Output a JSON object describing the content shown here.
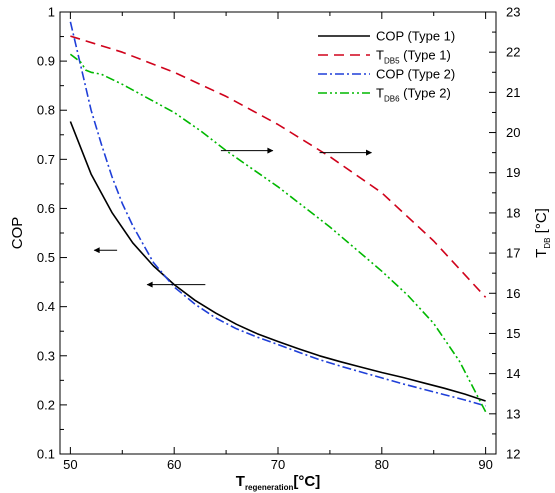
{
  "chart_data": {
    "type": "line",
    "xlabel": {
      "main": "T",
      "sub": "regeneration",
      "unit": "[°C]"
    },
    "ylabel_left": "COP",
    "ylabel_right": {
      "main": "T",
      "sub": "DB",
      "unit": " [°C]"
    },
    "xlim": [
      49,
      91
    ],
    "ylim_left": [
      0.1,
      1.0
    ],
    "ylim_right": [
      12,
      23
    ],
    "x_ticks": [
      50,
      60,
      70,
      80,
      90
    ],
    "y_left_ticks": [
      0.1,
      0.2,
      0.3,
      0.4,
      0.5,
      0.6,
      0.7,
      0.8,
      0.9,
      1
    ],
    "y_right_ticks": [
      12,
      13,
      14,
      15,
      16,
      17,
      18,
      19,
      20,
      21,
      22,
      23
    ],
    "x_tick_labels": [
      "50",
      "60",
      "70",
      "80",
      "90"
    ],
    "y_left_tick_labels": [
      "0.1",
      "0.2",
      "0.3",
      "0.4",
      "0.5",
      "0.6",
      "0.7",
      "0.8",
      "0.9",
      "1"
    ],
    "y_right_tick_labels": [
      "12",
      "13",
      "14",
      "15",
      "16",
      "17",
      "18",
      "19",
      "20",
      "21",
      "22",
      "23"
    ],
    "grid": false,
    "legend_position": "top-right",
    "series": [
      {
        "name": "COP (Type 1)",
        "legend_main": "COP (Type 1)",
        "legend_sub": "",
        "legend_tail": "",
        "axis": "left",
        "color": "#000000",
        "dash": "",
        "x": [
          50,
          52,
          54,
          56,
          58,
          60,
          62,
          64,
          66,
          68,
          70,
          72,
          74,
          76,
          78,
          80,
          82,
          84,
          86,
          88,
          90
        ],
        "y": [
          0.777,
          0.67,
          0.592,
          0.53,
          0.483,
          0.445,
          0.413,
          0.387,
          0.364,
          0.345,
          0.329,
          0.314,
          0.3,
          0.288,
          0.277,
          0.266,
          0.256,
          0.245,
          0.234,
          0.222,
          0.208
        ]
      },
      {
        "name": "TDB5 (Type 1)",
        "legend_main": "T",
        "legend_sub": "DB5",
        "legend_tail": " (Type 1)",
        "axis": "right",
        "color": "#d0021b",
        "dash": "10,6",
        "x": [
          50,
          55,
          60,
          65,
          70,
          75,
          80,
          85,
          90
        ],
        "y": [
          22.4,
          22.0,
          21.5,
          20.9,
          20.2,
          19.4,
          18.5,
          17.3,
          15.9
        ]
      },
      {
        "name": "COP (Type 2)",
        "legend_main": "COP (Type 2)",
        "legend_sub": "",
        "legend_tail": "",
        "axis": "left",
        "color": "#1f3fd8",
        "dash": "9,3,2,3",
        "x": [
          50,
          51,
          52,
          53,
          54,
          55,
          56,
          58,
          60,
          62,
          64,
          66,
          68,
          70,
          72,
          74,
          76,
          78,
          80,
          82,
          84,
          86,
          88,
          90
        ],
        "y": [
          0.98,
          0.89,
          0.8,
          0.73,
          0.665,
          0.61,
          0.565,
          0.49,
          0.44,
          0.405,
          0.377,
          0.355,
          0.338,
          0.323,
          0.307,
          0.292,
          0.279,
          0.267,
          0.255,
          0.243,
          0.232,
          0.221,
          0.21,
          0.198
        ]
      },
      {
        "name": "TDB6 (Type 2)",
        "legend_main": "T",
        "legend_sub": "DB6",
        "legend_tail": " (Type 2)",
        "axis": "right",
        "color": "#00b800",
        "dash": "9,3,2,3,2,3",
        "x": [
          50,
          51,
          51.5,
          52,
          53,
          55,
          57.5,
          60,
          62.5,
          65,
          67.5,
          70,
          72.5,
          75,
          77.5,
          80,
          82.5,
          85,
          87.5,
          90
        ],
        "y": [
          21.95,
          21.75,
          21.55,
          21.5,
          21.45,
          21.2,
          20.85,
          20.5,
          20.05,
          19.55,
          19.1,
          18.65,
          18.15,
          17.65,
          17.1,
          16.55,
          15.95,
          15.25,
          14.3,
          13.05
        ]
      }
    ],
    "annotations": [
      {
        "type": "arrow",
        "axis": "left",
        "x1": 54.5,
        "y1": 0.515,
        "x2": 52.3,
        "y2": 0.515
      },
      {
        "type": "arrow",
        "axis": "left",
        "x1": 63,
        "y1": 0.445,
        "x2": 57.4,
        "y2": 0.445
      },
      {
        "type": "arrow",
        "axis": "right",
        "x1": 64.5,
        "y1": 19.55,
        "x2": 69.5,
        "y2": 19.55
      },
      {
        "type": "arrow",
        "axis": "right",
        "x1": 74,
        "y1": 19.5,
        "x2": 79,
        "y2": 19.5
      }
    ]
  }
}
